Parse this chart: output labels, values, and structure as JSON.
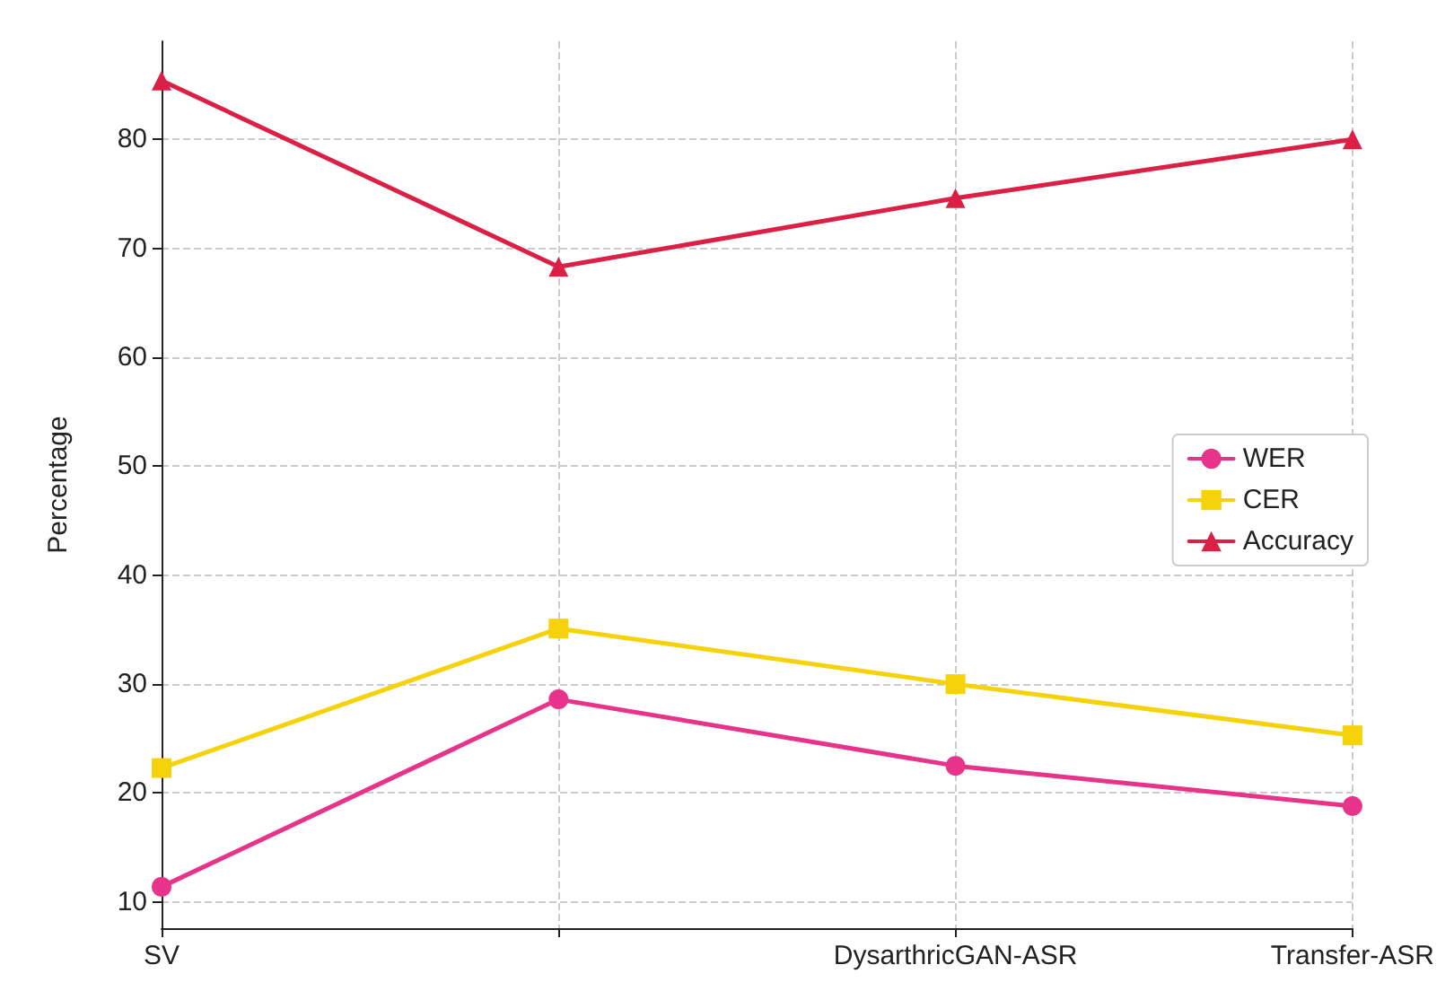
{
  "chart_data": {
    "type": "line",
    "ylabel": "Percentage",
    "categories": [
      "SV",
      null,
      "DysarthricGAN-ASR",
      "Transfer-ASR"
    ],
    "series": [
      {
        "name": "WER",
        "color": "#e8338a",
        "marker": "circle",
        "values": [
          11.4,
          28.6,
          22.5,
          18.8
        ]
      },
      {
        "name": "CER",
        "color": "#f5d20a",
        "marker": "square",
        "values": [
          22.3,
          35.1,
          30.0,
          25.3
        ]
      },
      {
        "name": "Accuracy",
        "color": "#dc1f45",
        "marker": "triangle",
        "values": [
          85.4,
          68.3,
          74.6,
          80.0
        ]
      }
    ],
    "ylim": [
      7.6,
      89
    ],
    "yticks": [
      10,
      20,
      30,
      40,
      50,
      60,
      70,
      80
    ],
    "grid": true,
    "legend": "right",
    "line_style": "solid"
  }
}
